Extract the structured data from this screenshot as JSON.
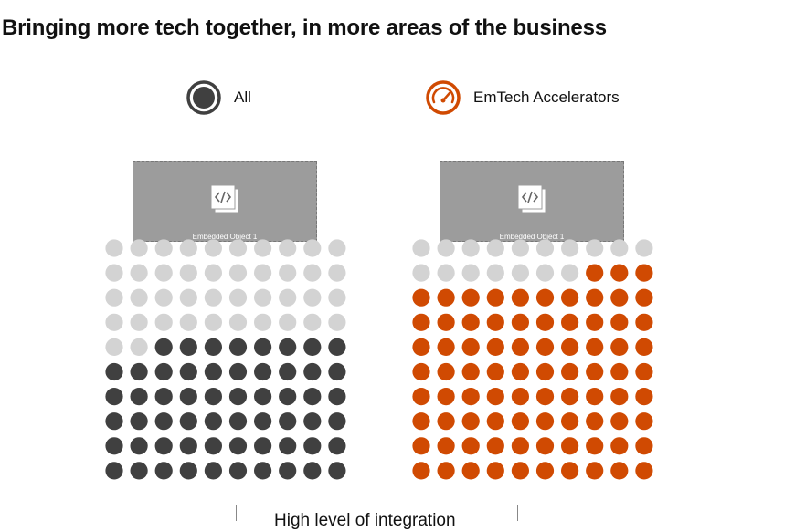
{
  "title": "Bringing more tech together, in more areas of the business",
  "legend": [
    {
      "label": "All",
      "icon": "filled-circle-icon",
      "color": "#404040"
    },
    {
      "label": "EmTech Accelerators",
      "icon": "speedometer-icon",
      "color": "#d04a02"
    }
  ],
  "embedded_objects": [
    {
      "caption": "Embedded Object 1",
      "icon": "code-file-icon"
    },
    {
      "caption": "Embedded Object 1",
      "icon": "code-file-icon"
    }
  ],
  "bottom_label": "High level of integration",
  "colors": {
    "inactive": "#d3d3d3",
    "all": "#404040",
    "emtech": "#d04a02"
  },
  "chart_data": [
    {
      "type": "waffle",
      "series": [
        {
          "name": "All",
          "filled": 58,
          "total": 100,
          "color": "#404040"
        }
      ]
    },
    {
      "type": "waffle",
      "series": [
        {
          "name": "EmTech Accelerators",
          "filled": 83,
          "total": 100,
          "color": "#d04a02"
        }
      ]
    }
  ]
}
